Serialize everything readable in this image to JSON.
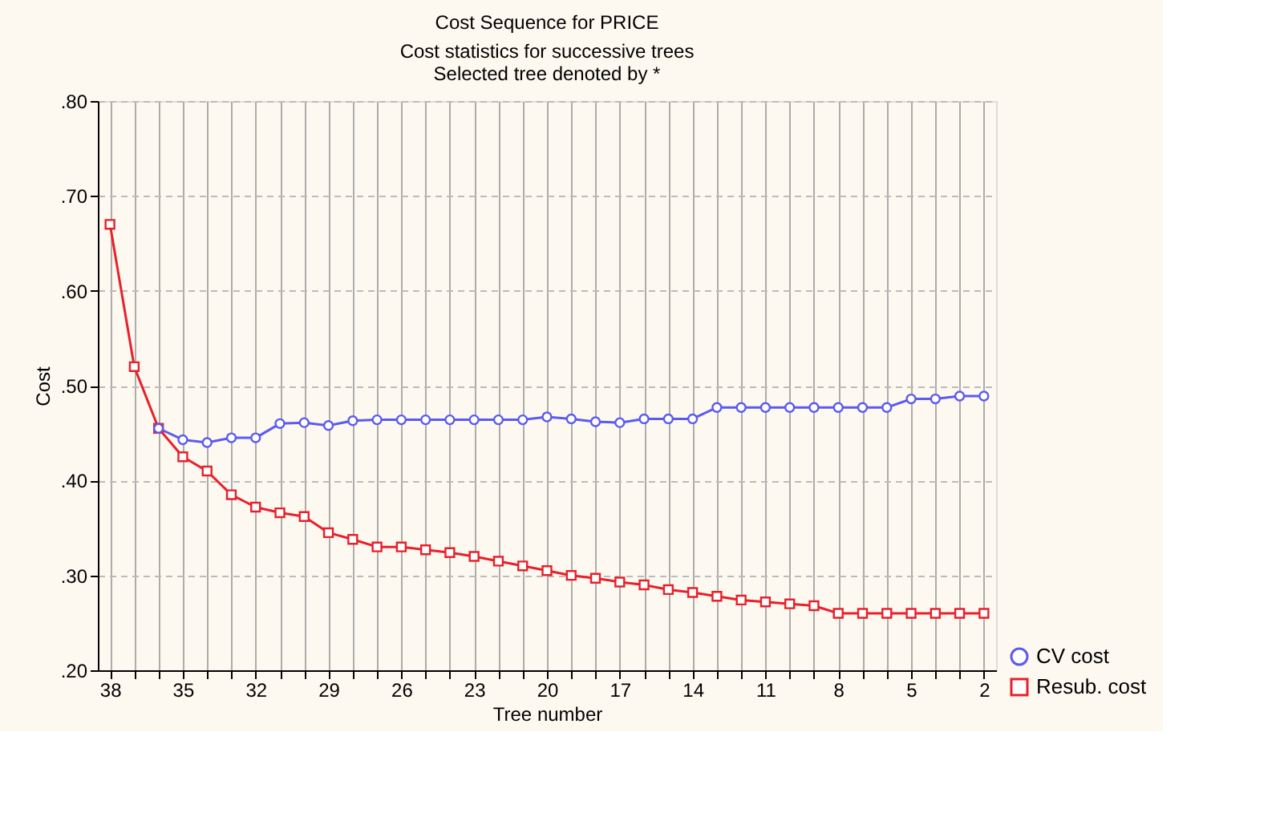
{
  "chart_data": {
    "type": "line",
    "title": "Cost Sequence for PRICE",
    "subtitle": "Cost statistics for successive trees",
    "annotations": [
      "Selected tree denoted by *"
    ],
    "xlabel": "Tree number",
    "ylabel": "Cost",
    "categories": [
      "38",
      null,
      null,
      "35",
      null,
      null,
      "32",
      null,
      null,
      "29",
      null,
      null,
      "26",
      null,
      null,
      "23",
      null,
      null,
      "20",
      null,
      null,
      "17",
      null,
      null,
      "14",
      null,
      null,
      "11",
      null,
      null,
      "8",
      null,
      null,
      "5",
      null,
      null,
      "2"
    ],
    "series": [
      {
        "name": "CV cost",
        "color": "#5b5bf0",
        "marker": "circle",
        "values": [
          null,
          null,
          0.455,
          0.443,
          0.44,
          0.445,
          0.445,
          0.46,
          0.461,
          0.458,
          0.463,
          0.464,
          0.464,
          0.464,
          0.464,
          0.464,
          0.464,
          0.464,
          0.467,
          0.465,
          0.462,
          0.461,
          0.465,
          0.465,
          0.465,
          0.477,
          0.477,
          0.477,
          0.477,
          0.477,
          0.477,
          0.477,
          0.477,
          0.486,
          0.486,
          0.489,
          0.489
        ]
      },
      {
        "name": "Resub. cost",
        "color": "#e8202a",
        "marker": "square",
        "values": [
          0.67,
          0.52,
          0.455,
          0.425,
          0.41,
          0.385,
          0.372,
          0.366,
          0.362,
          0.345,
          0.338,
          0.33,
          0.33,
          0.327,
          0.324,
          0.32,
          0.315,
          0.31,
          0.305,
          0.3,
          0.297,
          0.293,
          0.29,
          0.285,
          0.282,
          0.278,
          0.274,
          0.272,
          0.27,
          0.268,
          0.26,
          0.26,
          0.26,
          0.26,
          0.26,
          0.26,
          0.26
        ]
      }
    ],
    "ylim": [
      0.2,
      0.8
    ],
    "yticks": [
      {
        "value": 0.2,
        "label": ".20"
      },
      {
        "value": 0.3,
        "label": ".30"
      },
      {
        "value": 0.4,
        "label": ".40"
      },
      {
        "value": 0.5,
        "label": ".50"
      },
      {
        "value": 0.6,
        "label": ".60"
      },
      {
        "value": 0.7,
        "label": ".70"
      },
      {
        "value": 0.8,
        "label": ".80"
      }
    ],
    "grid": true,
    "legend": "bottom right",
    "line_style": "solid"
  }
}
